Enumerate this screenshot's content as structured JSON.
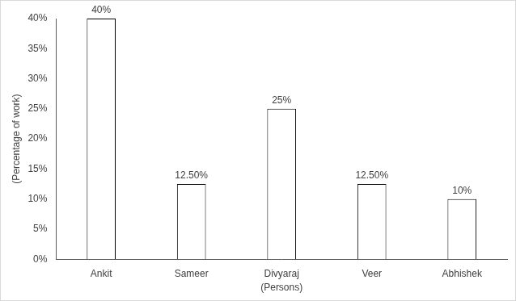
{
  "chart_data": {
    "type": "bar",
    "categories": [
      "Ankit",
      "Sameer",
      "Divyaraj",
      "Veer",
      "Abhishek"
    ],
    "values": [
      40,
      12.5,
      25,
      12.5,
      10
    ],
    "value_labels": [
      "40%",
      "12.50%",
      "25%",
      "12.50%",
      "10%"
    ],
    "color": "#ffffff",
    "x_label": "(Persons)",
    "y_label": "(Percentage of work)",
    "ylim": [
      0,
      40
    ],
    "yticks": [
      {
        "value": 0,
        "label": "0%"
      },
      {
        "value": 5,
        "label": "5%"
      },
      {
        "value": 10,
        "label": "10%"
      },
      {
        "value": 15,
        "label": "15%"
      },
      {
        "value": 20,
        "label": "20%"
      },
      {
        "value": 25,
        "label": "25%"
      },
      {
        "value": 30,
        "label": "30%"
      },
      {
        "value": 35,
        "label": "35%"
      },
      {
        "value": 40,
        "label": "40%"
      }
    ],
    "grid": false,
    "data_labels": true
  }
}
